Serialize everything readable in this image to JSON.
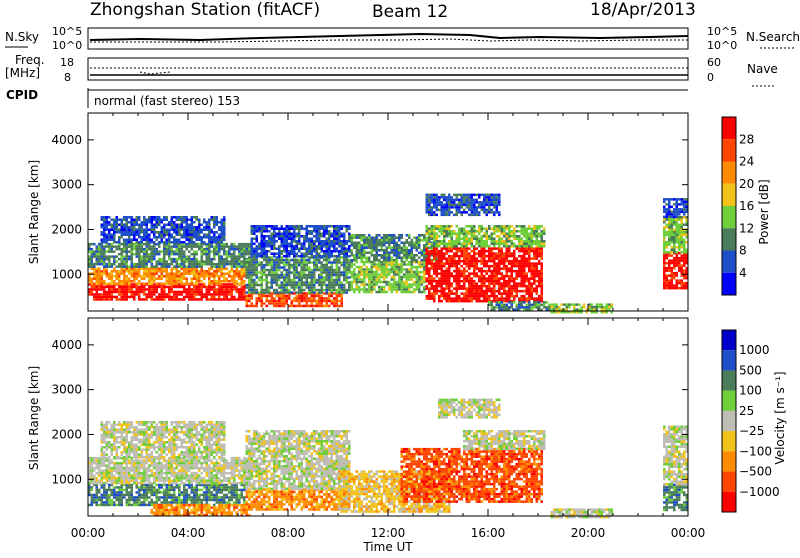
{
  "header": {
    "station": "Zhongshan Station (fitACF)",
    "beam": "Beam 12",
    "date": "18/Apr/2013"
  },
  "summary_panels": {
    "nsky_label": "N.Sky",
    "nsky_ticks": [
      "10^5",
      "10^0"
    ],
    "nsearch_label": "N.Search",
    "nsearch_ticks": [
      "10^5",
      "10^0"
    ],
    "freq_label": "Freq.",
    "freq_unit": "[MHz]",
    "freq_ticks": [
      "18",
      "8"
    ],
    "nave_label": "Nave",
    "nave_ticks": [
      "60",
      "0"
    ],
    "cpid_label": "CPID",
    "cpid_text": "normal (fast stereo) 153"
  },
  "chart_data": [
    {
      "type": "heatmap",
      "quantity": "Power",
      "ylabel": "Slant Range [km]",
      "xlabel": "Time UT",
      "x_ticks": [
        "00:00",
        "04:00",
        "08:00",
        "12:00",
        "16:00",
        "20:00",
        "00:00"
      ],
      "xlim_hours": [
        0,
        24
      ],
      "y_ticks": [
        1000,
        2000,
        3000,
        4000
      ],
      "ylim_km": [
        180,
        4600
      ],
      "colorbar": {
        "label": "Power [dB]",
        "ticks": [
          "4",
          "8",
          "12",
          "16",
          "20",
          "24",
          "28"
        ],
        "colors": [
          "#0000ff",
          "#1e4fc8",
          "#4a7c59",
          "#6fcf3a",
          "#f2c318",
          "#ff8c00",
          "#ff4500",
          "#ff0000"
        ]
      },
      "regions": [
        {
          "t0": 0.0,
          "t1": 6.3,
          "r0": 420,
          "r1": 800,
          "level": 7
        },
        {
          "t0": 0.0,
          "t1": 6.3,
          "r0": 800,
          "r1": 1150,
          "level": 5
        },
        {
          "t0": 0.0,
          "t1": 6.5,
          "r0": 1150,
          "r1": 1700,
          "level": 2
        },
        {
          "t0": 0.5,
          "t1": 5.5,
          "r0": 1700,
          "r1": 2300,
          "level": 1
        },
        {
          "t0": 6.3,
          "t1": 10.2,
          "r0": 300,
          "r1": 600,
          "level": 6
        },
        {
          "t0": 6.3,
          "t1": 10.5,
          "r0": 600,
          "r1": 1400,
          "level": 2
        },
        {
          "t0": 6.5,
          "t1": 10.5,
          "r0": 1400,
          "r1": 2100,
          "level": 1
        },
        {
          "t0": 10.5,
          "t1": 13.5,
          "r0": 600,
          "r1": 1300,
          "level": 3
        },
        {
          "t0": 10.5,
          "t1": 14.0,
          "r0": 1300,
          "r1": 1900,
          "level": 2
        },
        {
          "t0": 13.5,
          "t1": 18.2,
          "r0": 400,
          "r1": 1600,
          "level": 7
        },
        {
          "t0": 13.5,
          "t1": 18.3,
          "r0": 1600,
          "r1": 2100,
          "level": 3
        },
        {
          "t0": 13.5,
          "t1": 16.5,
          "r0": 2300,
          "r1": 2800,
          "level": 1
        },
        {
          "t0": 16.0,
          "t1": 18.5,
          "r0": 200,
          "r1": 400,
          "level": 2
        },
        {
          "t0": 18.5,
          "t1": 21.0,
          "r0": 180,
          "r1": 350,
          "level": 3
        },
        {
          "t0": 23.0,
          "t1": 24.0,
          "r0": 700,
          "r1": 1500,
          "level": 7
        },
        {
          "t0": 23.0,
          "t1": 24.0,
          "r0": 1500,
          "r1": 2300,
          "level": 3
        },
        {
          "t0": 23.0,
          "t1": 24.0,
          "r0": 2300,
          "r1": 2700,
          "level": 1
        }
      ]
    },
    {
      "type": "heatmap",
      "quantity": "Velocity",
      "ylabel": "Slant Range [km]",
      "xlabel": "Time UT",
      "x_ticks": [
        "00:00",
        "04:00",
        "08:00",
        "12:00",
        "16:00",
        "20:00",
        "00:00"
      ],
      "xlim_hours": [
        0,
        24
      ],
      "y_ticks": [
        1000,
        2000,
        3000,
        4000
      ],
      "ylim_km": [
        180,
        4600
      ],
      "colorbar": {
        "label": "Velocity [m s⁻¹]",
        "ticks": [
          "1000",
          "500",
          "100",
          "25",
          "−25",
          "−100",
          "−500",
          "−1000"
        ],
        "colors": [
          "#0000cd",
          "#1e4fc8",
          "#4a7c59",
          "#6fcf3a",
          "#bebeb4",
          "#f2c318",
          "#ff8c00",
          "#ff4500",
          "#ff0000"
        ]
      },
      "regions": [
        {
          "t0": 0.0,
          "t1": 6.3,
          "r0": 420,
          "r1": 900,
          "level": 2
        },
        {
          "t0": 0.0,
          "t1": 6.5,
          "r0": 900,
          "r1": 1500,
          "level": 4
        },
        {
          "t0": 0.5,
          "t1": 5.5,
          "r0": 1500,
          "r1": 2300,
          "level": 4
        },
        {
          "t0": 2.5,
          "t1": 6.5,
          "r0": 200,
          "r1": 450,
          "level": 6
        },
        {
          "t0": 6.3,
          "t1": 10.5,
          "r0": 300,
          "r1": 800,
          "level": 6
        },
        {
          "t0": 6.3,
          "t1": 10.5,
          "r0": 800,
          "r1": 2100,
          "level": 4
        },
        {
          "t0": 10.0,
          "t1": 14.5,
          "r0": 300,
          "r1": 1200,
          "level": 5
        },
        {
          "t0": 12.5,
          "t1": 18.2,
          "r0": 500,
          "r1": 1700,
          "level": 7
        },
        {
          "t0": 15.0,
          "t1": 18.3,
          "r0": 1700,
          "r1": 2100,
          "level": 4
        },
        {
          "t0": 14.0,
          "t1": 16.5,
          "r0": 2400,
          "r1": 2800,
          "level": 4
        },
        {
          "t0": 18.5,
          "t1": 21.0,
          "r0": 180,
          "r1": 350,
          "level": 4
        },
        {
          "t0": 23.0,
          "t1": 24.0,
          "r0": 300,
          "r1": 900,
          "level": 2
        },
        {
          "t0": 23.0,
          "t1": 24.0,
          "r0": 900,
          "r1": 2200,
          "level": 4
        }
      ]
    }
  ]
}
